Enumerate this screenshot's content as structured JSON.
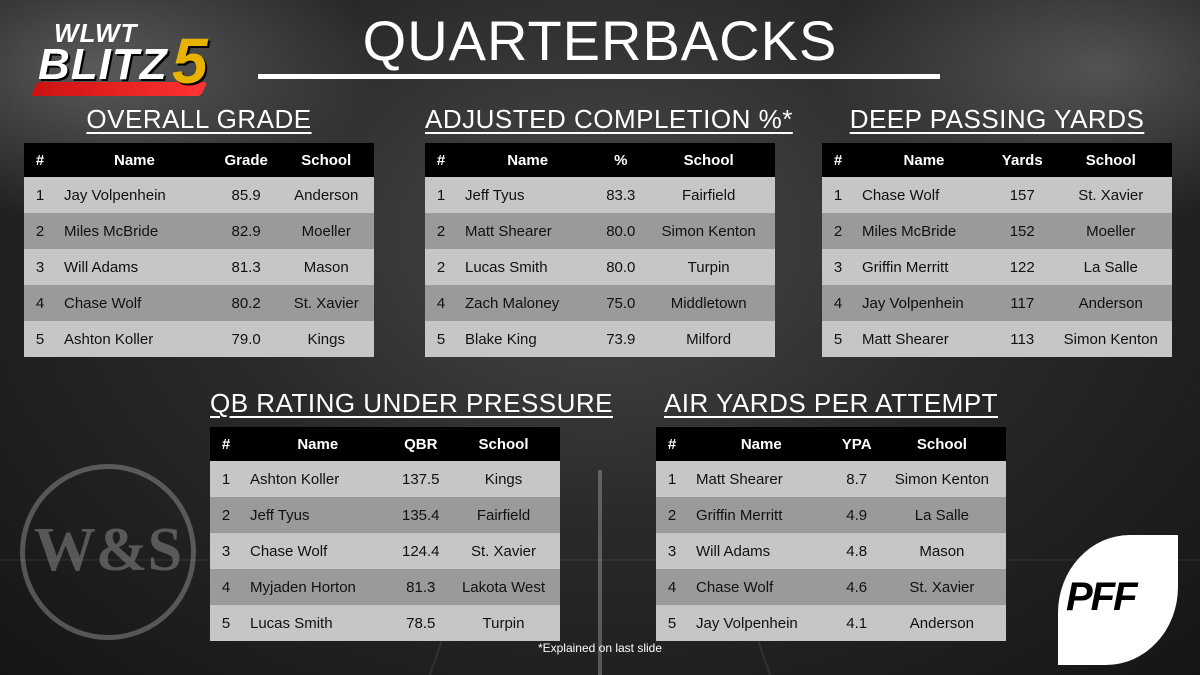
{
  "header": {
    "title": "QUARTERBACKS",
    "logo_wlwt": "WLWT",
    "logo_blitz": "BLITZ",
    "logo_five": "5"
  },
  "tables": {
    "overall": {
      "title": "OVERALL GRADE",
      "headers": [
        "#",
        "Name",
        "Grade",
        "School"
      ],
      "rows": [
        [
          "1",
          "Jay Volpenhein",
          "85.9",
          "Anderson"
        ],
        [
          "2",
          "Miles McBride",
          "82.9",
          "Moeller"
        ],
        [
          "3",
          "Will Adams",
          "81.3",
          "Mason"
        ],
        [
          "4",
          "Chase Wolf",
          "80.2",
          "St. Xavier"
        ],
        [
          "5",
          "Ashton Koller",
          "79.0",
          "Kings"
        ]
      ]
    },
    "completion": {
      "title": "ADJUSTED COMPLETION %*",
      "headers": [
        "#",
        "Name",
        "%",
        "School"
      ],
      "rows": [
        [
          "1",
          "Jeff Tyus",
          "83.3",
          "Fairfield"
        ],
        [
          "2",
          "Matt Shearer",
          "80.0",
          "Simon Kenton"
        ],
        [
          "2",
          "Lucas Smith",
          "80.0",
          "Turpin"
        ],
        [
          "4",
          "Zach Maloney",
          "75.0",
          "Middletown"
        ],
        [
          "5",
          "Blake King",
          "73.9",
          "Milford"
        ]
      ]
    },
    "deep": {
      "title": "DEEP PASSING YARDS",
      "headers": [
        "#",
        "Name",
        "Yards",
        "School"
      ],
      "rows": [
        [
          "1",
          "Chase Wolf",
          "157",
          "St. Xavier"
        ],
        [
          "2",
          "Miles McBride",
          "152",
          "Moeller"
        ],
        [
          "3",
          "Griffin Merritt",
          "122",
          "La Salle"
        ],
        [
          "4",
          "Jay Volpenhein",
          "117",
          "Anderson"
        ],
        [
          "5",
          "Matt Shearer",
          "113",
          "Simon Kenton"
        ]
      ]
    },
    "pressure": {
      "title": "QB RATING UNDER PRESSURE",
      "headers": [
        "#",
        "Name",
        "QBR",
        "School"
      ],
      "rows": [
        [
          "1",
          "Ashton Koller",
          "137.5",
          "Kings"
        ],
        [
          "2",
          "Jeff Tyus",
          "135.4",
          "Fairfield"
        ],
        [
          "3",
          "Chase Wolf",
          "124.4",
          "St. Xavier"
        ],
        [
          "4",
          "Myjaden Horton",
          "81.3",
          "Lakota West"
        ],
        [
          "5",
          "Lucas Smith",
          "78.5",
          "Turpin"
        ]
      ]
    },
    "airyards": {
      "title": "AIR YARDS PER ATTEMPT",
      "headers": [
        "#",
        "Name",
        "YPA",
        "School"
      ],
      "rows": [
        [
          "1",
          "Matt Shearer",
          "8.7",
          "Simon Kenton"
        ],
        [
          "2",
          "Griffin Merritt",
          "4.9",
          "La Salle"
        ],
        [
          "3",
          "Will Adams",
          "4.8",
          "Mason"
        ],
        [
          "4",
          "Chase Wolf",
          "4.6",
          "St. Xavier"
        ],
        [
          "5",
          "Jay Volpenhein",
          "4.1",
          "Anderson"
        ]
      ]
    }
  },
  "footnote": "*Explained  on last slide",
  "logos": {
    "ws": "W&S",
    "pff": "PFF"
  }
}
